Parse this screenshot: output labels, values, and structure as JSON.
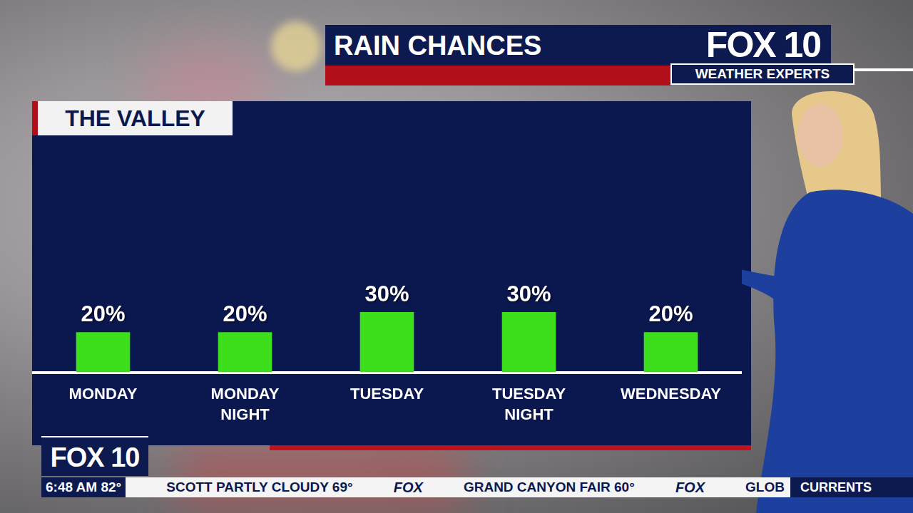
{
  "chart_data": {
    "type": "bar",
    "title": "RAIN CHANCES",
    "subtitle": "THE VALLEY",
    "categories": [
      "MONDAY",
      "MONDAY NIGHT",
      "TUESDAY",
      "TUESDAY NIGHT",
      "WEDNESDAY"
    ],
    "values": [
      20,
      20,
      30,
      30,
      20
    ],
    "value_labels": [
      "20%",
      "20%",
      "30%",
      "30%",
      "20%"
    ],
    "data_labels": true,
    "color": "#3ddf1c",
    "ylim": [
      0,
      100
    ],
    "grid": false,
    "tick_labels": "x"
  },
  "branding": {
    "logo": "FOX 10",
    "tagline": "WEATHER EXPERTS",
    "corner_logo": "FOX 10"
  },
  "ticker": {
    "time": "6:48 AM",
    "temperature": "82°",
    "items": [
      "SCOTT PARTLY CLOUDY 69°",
      "FOX",
      "GRAND CANYON FAIR 60°",
      "FOX",
      "GLOB"
    ],
    "segment": "CURRENTS"
  }
}
